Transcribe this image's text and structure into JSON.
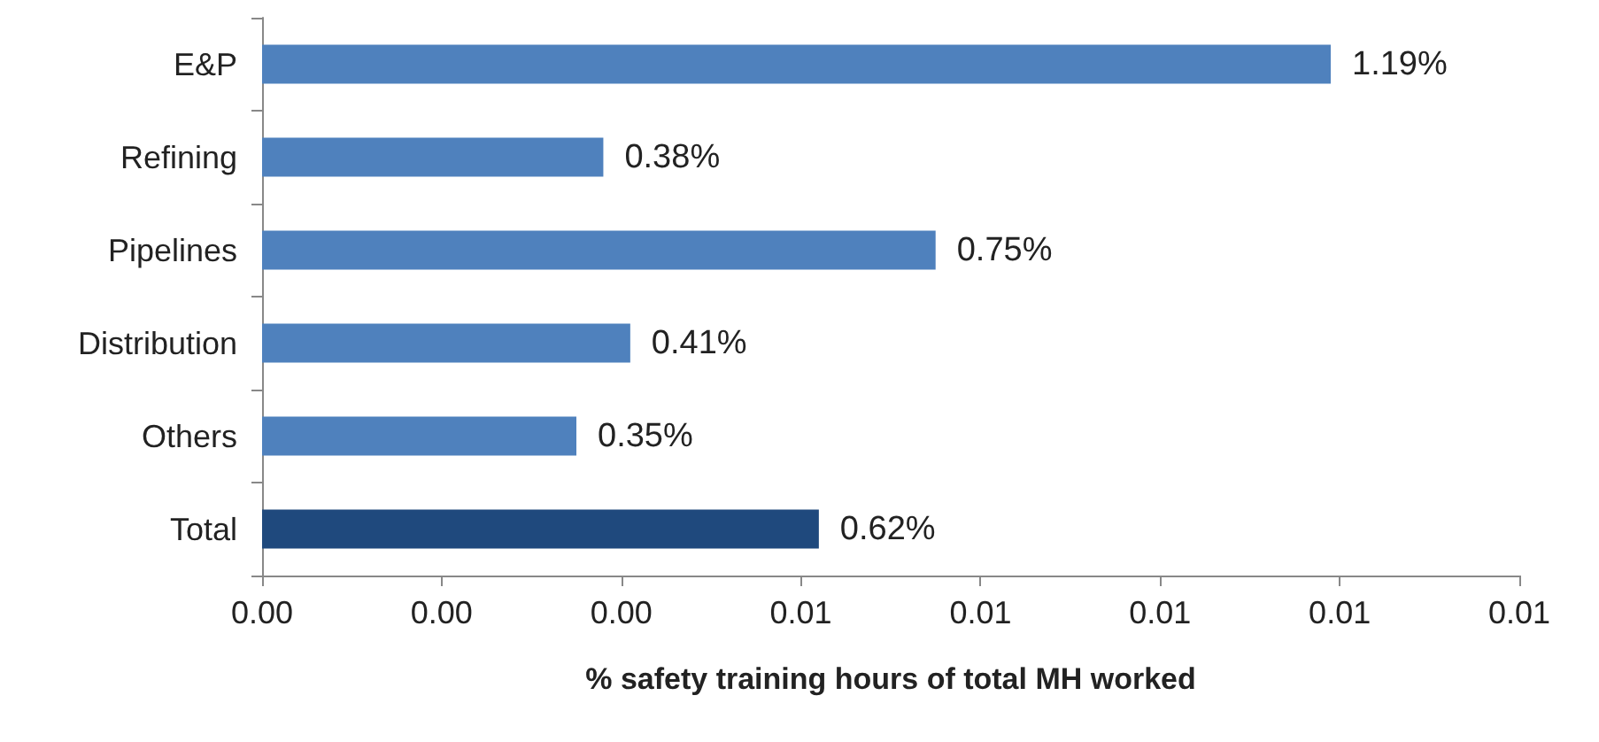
{
  "chart_data": {
    "type": "bar",
    "orientation": "horizontal",
    "xlabel": "% safety training hours of total MH worked",
    "categories": [
      "E&P",
      "Refining",
      "Pipelines",
      "Distribution",
      "Others",
      "Total"
    ],
    "values": [
      0.0119,
      0.0038,
      0.0075,
      0.0041,
      0.0035,
      0.0062
    ],
    "colors": [
      "#4f81bd",
      "#4f81bd",
      "#4f81bd",
      "#4f81bd",
      "#4f81bd",
      "#1f497d"
    ],
    "value_labels": [
      "1.19%",
      "0.38%",
      "0.75%",
      "0.41%",
      "0.35%",
      "0.62%"
    ],
    "xlim": [
      0,
      0.014
    ],
    "xticks": [
      {
        "value": 0,
        "label": "0.00"
      },
      {
        "value": 0.002,
        "label": "0.00"
      },
      {
        "value": 0.004,
        "label": "0.00"
      },
      {
        "value": 0.006,
        "label": "0.01"
      },
      {
        "value": 0.008,
        "label": "0.01"
      },
      {
        "value": 0.01,
        "label": "0.01"
      },
      {
        "value": 0.012,
        "label": "0.01"
      },
      {
        "value": 0.014,
        "label": "0.01"
      }
    ],
    "grid": false
  }
}
